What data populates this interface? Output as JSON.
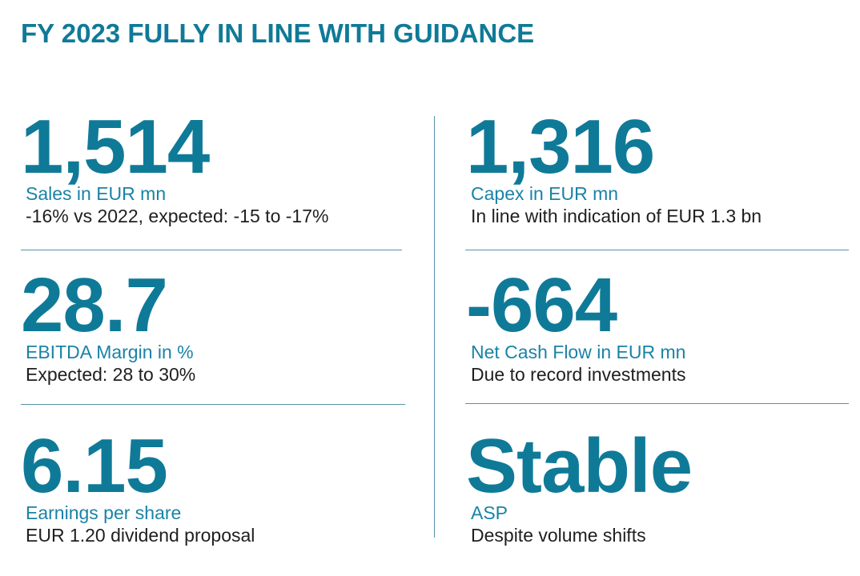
{
  "title": "FY 2023 FULLY IN LINE WITH GUIDANCE",
  "kpis": [
    {
      "value": "1,514",
      "label": "Sales in EUR mn",
      "sub": "-16% vs 2022, expected: -15 to -17%"
    },
    {
      "value": "1,316",
      "label": "Capex in EUR mn",
      "sub": "In line with indication of EUR 1.3 bn"
    },
    {
      "value": "28.7",
      "label": "EBITDA Margin in %",
      "sub": "Expected: 28 to 30%"
    },
    {
      "value": "-664",
      "label": "Net Cash Flow in EUR mn",
      "sub": "Due to record investments"
    },
    {
      "value": "6.15",
      "label": "Earnings per share",
      "sub": "EUR 1.20 dividend proposal"
    },
    {
      "value": "Stable",
      "label": "ASP",
      "sub": "Despite volume shifts"
    }
  ],
  "colors": {
    "accent": "#0f7a98",
    "label": "#1a83a6",
    "text": "#1f1f1f",
    "divider": "#5a93a8"
  }
}
